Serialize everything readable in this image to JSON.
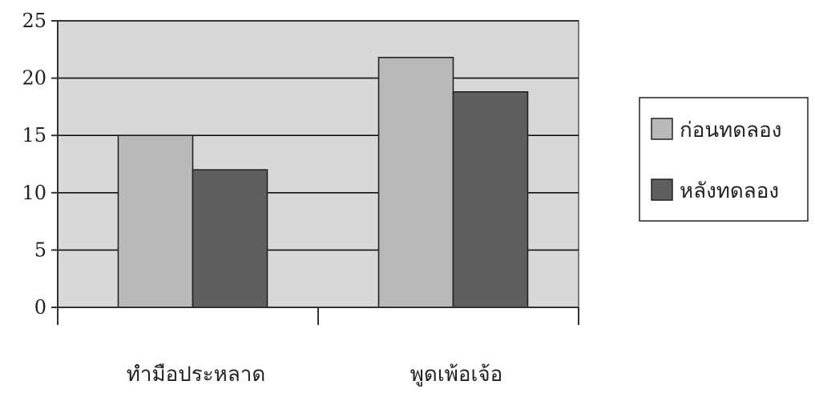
{
  "chart_data": {
    "type": "bar",
    "title": "",
    "xlabel": "",
    "ylabel": "",
    "categories": [
      "ทำมือประหลาด",
      "พูดเพ้อเจ้อ"
    ],
    "series": [
      {
        "name": "ก่อนทดลอง",
        "values": [
          15,
          21.8
        ],
        "color": "#b9b9b9"
      },
      {
        "name": "หลังทดลอง",
        "values": [
          12,
          18.8
        ],
        "color": "#5f5f5f"
      }
    ],
    "ylim": [
      0,
      25
    ],
    "yticks": [
      0,
      5,
      10,
      15,
      20,
      25
    ],
    "grid": true,
    "legend_position": "right",
    "plot_background": "#d8d8d8"
  }
}
